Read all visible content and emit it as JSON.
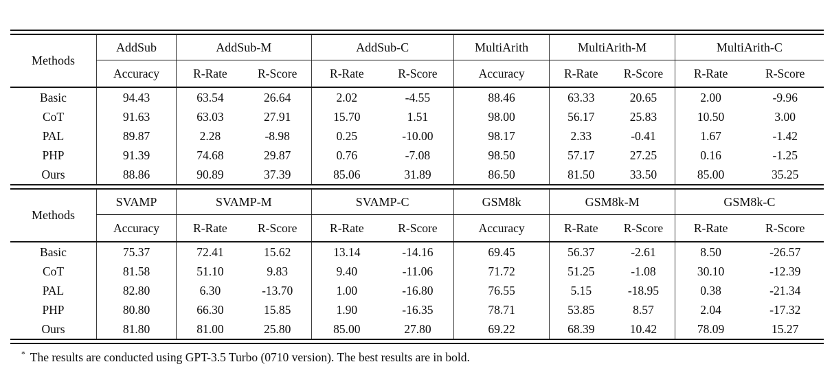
{
  "page": {
    "background_color": "#ffffff",
    "text_color": "#0d0d0d",
    "rule_color": "#151515"
  },
  "tables": [
    {
      "methods_label": "Methods",
      "group_headers": [
        {
          "label": "AddSub"
        },
        {
          "label": "AddSub-M"
        },
        {
          "label": "AddSub-C"
        },
        {
          "label": "MultiArith"
        },
        {
          "label": "MultiArith-M"
        },
        {
          "label": "MultiArith-C"
        }
      ],
      "sub_headers": [
        "Accuracy",
        "R-Rate",
        "R-Score",
        "R-Rate",
        "R-Score",
        "Accuracy",
        "R-Rate",
        "R-Score",
        "R-Rate",
        "R-Score"
      ],
      "rows": [
        {
          "method": "Basic",
          "values": [
            "94.43",
            "63.54",
            "26.64",
            "2.02",
            "-4.55",
            "88.46",
            "63.33",
            "20.65",
            "2.00",
            "-9.96"
          ],
          "bold": [
            0
          ]
        },
        {
          "method": "CoT",
          "values": [
            "91.63",
            "63.03",
            "27.91",
            "15.70",
            "1.51",
            "98.00",
            "56.17",
            "25.83",
            "10.50",
            "3.00"
          ],
          "bold": []
        },
        {
          "method": "PAL",
          "values": [
            "89.87",
            "2.28",
            "-8.98",
            "0.25",
            "-10.00",
            "98.17",
            "2.33",
            "-0.41",
            "1.67",
            "-1.42"
          ],
          "bold": []
        },
        {
          "method": "PHP",
          "values": [
            "91.39",
            "74.68",
            "29.87",
            "0.76",
            "-7.08",
            "98.50",
            "57.17",
            "27.25",
            "0.16",
            "-1.25"
          ],
          "bold": [
            5
          ]
        },
        {
          "method": "Ours",
          "values": [
            "88.86",
            "90.89",
            "37.39",
            "85.06",
            "31.89",
            "86.50",
            "81.50",
            "33.50",
            "85.00",
            "35.25"
          ],
          "bold": [
            1,
            2,
            3,
            4,
            6,
            7,
            8,
            9
          ]
        }
      ]
    },
    {
      "methods_label": "Methods",
      "group_headers": [
        {
          "label": "SVAMP"
        },
        {
          "label": "SVAMP-M"
        },
        {
          "label": "SVAMP-C"
        },
        {
          "label": "GSM8k"
        },
        {
          "label": "GSM8k-M"
        },
        {
          "label": "GSM8k-C"
        }
      ],
      "sub_headers": [
        "Accuracy",
        "R-Rate",
        "R-Score",
        "R-Rate",
        "R-Score",
        "Accuracy",
        "R-Rate",
        "R-Score",
        "R-Rate",
        "R-Score"
      ],
      "rows": [
        {
          "method": "Basic",
          "values": [
            "75.37",
            "72.41",
            "15.62",
            "13.14",
            "-14.16",
            "69.45",
            "56.37",
            "-2.61",
            "8.50",
            "-26.57"
          ],
          "bold": []
        },
        {
          "method": "CoT",
          "values": [
            "81.58",
            "51.10",
            "9.83",
            "9.40",
            "-11.06",
            "71.72",
            "51.25",
            "-1.08",
            "30.10",
            "-12.39"
          ],
          "bold": []
        },
        {
          "method": "PAL",
          "values": [
            "82.80",
            "6.30",
            "-13.70",
            "1.00",
            "-16.80",
            "76.55",
            "5.15",
            "-18.95",
            "0.38",
            "-21.34"
          ],
          "bold": [
            0
          ]
        },
        {
          "method": "PHP",
          "values": [
            "80.80",
            "66.30",
            "15.85",
            "1.90",
            "-16.35",
            "78.71",
            "53.85",
            "8.57",
            "2.04",
            "-17.32"
          ],
          "bold": [
            5
          ]
        },
        {
          "method": "Ours",
          "values": [
            "81.80",
            "81.00",
            "25.80",
            "85.00",
            "27.80",
            "69.22",
            "68.39",
            "10.42",
            "78.09",
            "15.27"
          ],
          "bold": [
            1,
            2,
            3,
            4,
            6,
            7,
            8,
            9
          ]
        }
      ]
    }
  ],
  "footnote": {
    "marker": "*",
    "text": "The results are conducted using GPT-3.5 Turbo (0710 version). The best results are in bold."
  }
}
